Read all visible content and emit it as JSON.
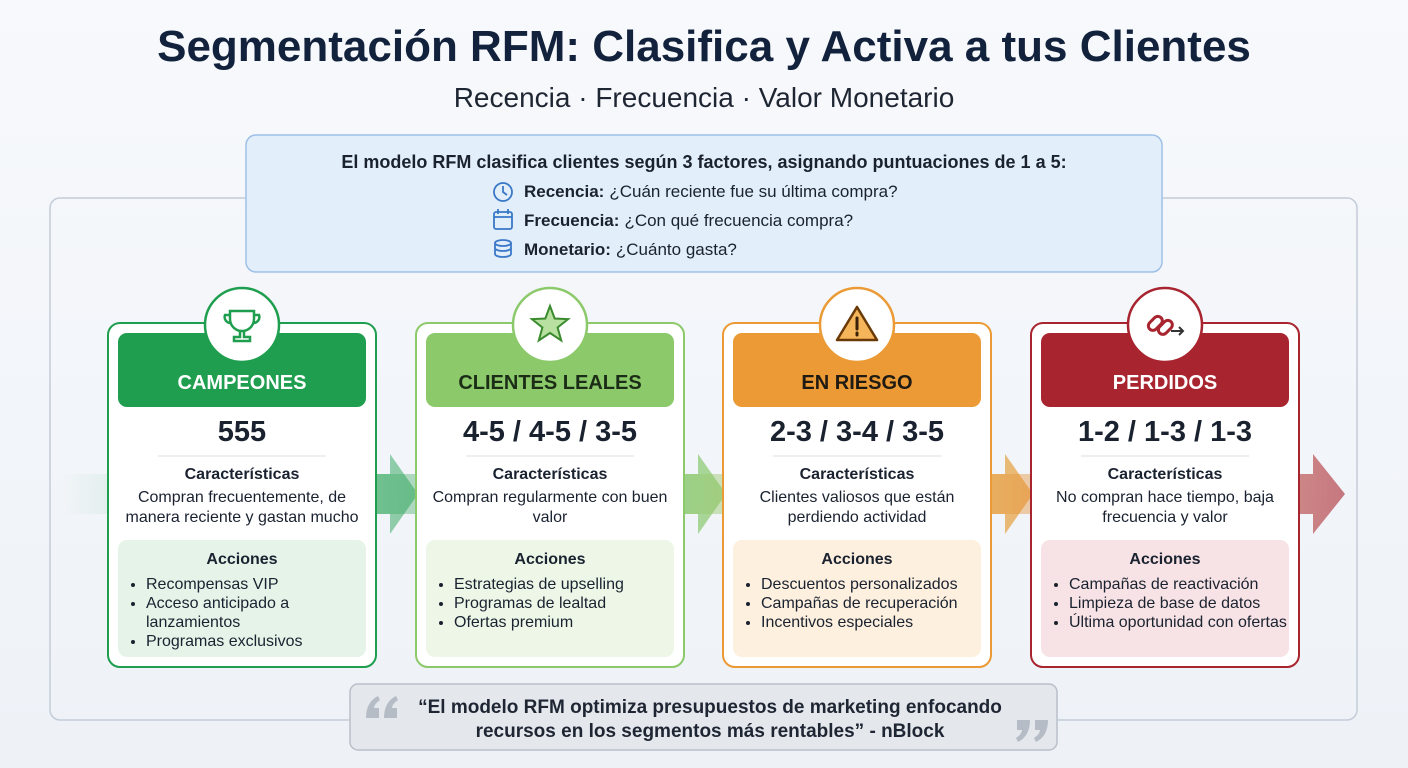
{
  "header": {
    "title": "Segmentación RFM: Clasifica y Activa a tus Clientes",
    "subtitle": "Recencia · Frecuencia · Valor Monetario"
  },
  "intro": {
    "lead": "El modelo RFM clasifica clientes según 3 factores, asignando puntuaciones de 1 a 5:",
    "factors": [
      {
        "label": "Recencia:",
        "text": "¿Cuán reciente fue su última compra?"
      },
      {
        "label": "Frecuencia:",
        "text": "¿Con qué frecuencia compra?"
      },
      {
        "label": "Monetario:",
        "text": "¿Cuánto gasta?"
      }
    ]
  },
  "segments": [
    {
      "name": "CAMPEONES",
      "score": "555",
      "characteristics_label": "Características",
      "characteristics": "Compran frecuentemente, de manera reciente y gastan mucho",
      "actions_label": "Acciones",
      "actions": [
        "Recompensas VIP",
        "Acceso anticipado a lanzamientos",
        "Programas exclusivos"
      ]
    },
    {
      "name": "CLIENTES LEALES",
      "score": "4-5 / 4-5 / 3-5",
      "characteristics_label": "Características",
      "characteristics": "Compran regularmente con buen valor",
      "actions_label": "Acciones",
      "actions": [
        "Estrategias de upselling",
        "Programas de lealtad",
        "Ofertas premium"
      ]
    },
    {
      "name": "EN RIESGO",
      "score": "2-3 / 3-4 / 3-5",
      "characteristics_label": "Características",
      "characteristics": "Clientes valiosos que están perdiendo actividad",
      "actions_label": "Acciones",
      "actions": [
        "Descuentos personalizados",
        "Campañas de recuperación",
        "Incentivos especiales"
      ]
    },
    {
      "name": "PERDIDOS",
      "score": "1-2 / 1-3 / 1-3",
      "characteristics_label": "Características",
      "characteristics": "No compran hace tiempo, baja frecuencia y valor",
      "actions_label": "Acciones",
      "actions": [
        "Campañas de reactivación",
        "Limpieza de base de datos",
        "Última oportunidad con ofertas"
      ]
    }
  ],
  "quote": {
    "text": "“El modelo RFM optimiza presupuestos de marketing enfocando recursos en los segmentos más rentables” - nBlock"
  }
}
